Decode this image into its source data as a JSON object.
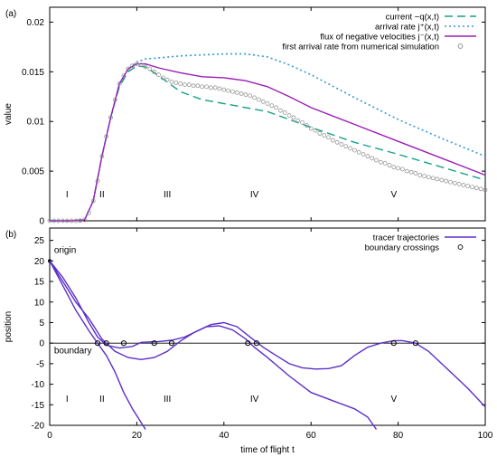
{
  "chart_data": [
    {
      "type": "line",
      "panel_label": "(a)",
      "xlabel": "",
      "ylabel": "value",
      "xlim": [
        0,
        100
      ],
      "ylim": [
        0,
        0.0215
      ],
      "xticks": [
        0,
        20,
        40,
        60,
        80,
        100
      ],
      "yticks": [
        0,
        0.005,
        0.01,
        0.015,
        0.02
      ],
      "ytick_labels": [
        "0",
        "0.005",
        "0.01",
        "0.015",
        "0.02"
      ],
      "legend_position": "top-right",
      "regions": [
        {
          "label": "I",
          "x": 4
        },
        {
          "label": "II",
          "x": 12
        },
        {
          "label": "III",
          "x": 27
        },
        {
          "label": "IV",
          "x": 47
        },
        {
          "label": "V",
          "x": 79
        }
      ],
      "series": [
        {
          "name": "current −q(x,t)",
          "style": "dashed",
          "color": "#16a085",
          "x": [
            0,
            5,
            8,
            10,
            12,
            14,
            16,
            18,
            20,
            22,
            25,
            30,
            35,
            40,
            50,
            60,
            70,
            80,
            90,
            100
          ],
          "y": [
            0,
            0,
            0.0001,
            0.002,
            0.0065,
            0.0104,
            0.0135,
            0.015,
            0.0156,
            0.0155,
            0.0146,
            0.013,
            0.0122,
            0.0118,
            0.011,
            0.0094,
            0.0079,
            0.0067,
            0.0054,
            0.0041
          ]
        },
        {
          "name": "arrival rate j⁺(x,t)",
          "style": "dotted",
          "color": "#3498db",
          "x": [
            0,
            5,
            8,
            10,
            12,
            14,
            16,
            18,
            20,
            22,
            25,
            30,
            35,
            40,
            45,
            50,
            55,
            60,
            70,
            80,
            90,
            100
          ],
          "y": [
            0,
            0,
            0.0001,
            0.002,
            0.0065,
            0.0104,
            0.0137,
            0.0153,
            0.016,
            0.0163,
            0.0164,
            0.0166,
            0.0167,
            0.0168,
            0.0168,
            0.0165,
            0.0157,
            0.0147,
            0.0124,
            0.0102,
            0.0083,
            0.0065
          ]
        },
        {
          "name": "flux of negative velocities j⁻(x,t)",
          "style": "solid",
          "color": "#9b1fb5",
          "x": [
            0,
            5,
            8,
            10,
            12,
            14,
            16,
            18,
            20,
            22,
            25,
            30,
            35,
            40,
            45,
            50,
            55,
            60,
            70,
            80,
            90,
            100
          ],
          "y": [
            0,
            0,
            0.0001,
            0.002,
            0.0065,
            0.0104,
            0.0138,
            0.0153,
            0.0158,
            0.0158,
            0.0154,
            0.0149,
            0.0145,
            0.0144,
            0.0141,
            0.0135,
            0.0125,
            0.0114,
            0.0097,
            0.008,
            0.0063,
            0.0046
          ]
        },
        {
          "name": "first arrival rate from numerical simulation",
          "style": "circles",
          "color": "#888888",
          "x": [
            0,
            1,
            2,
            3,
            4,
            5,
            6,
            7,
            8,
            9,
            10,
            11,
            12,
            13,
            14,
            15,
            16,
            17,
            18,
            19,
            20,
            21,
            22,
            23,
            24,
            25,
            26,
            27,
            28,
            29,
            30,
            31,
            32,
            33,
            34,
            35,
            36,
            37,
            38,
            39,
            40,
            41,
            42,
            43,
            44,
            45,
            46,
            47,
            48,
            49,
            50,
            51,
            52,
            53,
            54,
            55,
            56,
            57,
            58,
            59,
            60,
            61,
            62,
            63,
            64,
            65,
            66,
            67,
            68,
            69,
            70,
            71,
            72,
            73,
            74,
            75,
            76,
            77,
            78,
            79,
            80,
            81,
            82,
            83,
            84,
            85,
            86,
            87,
            88,
            89,
            90,
            91,
            92,
            93,
            94,
            95,
            96,
            97,
            98,
            99,
            100
          ],
          "y": [
            0,
            0,
            0,
            0,
            0,
            0,
            0,
            2e-05,
            0.0001,
            0.0008,
            0.002,
            0.004,
            0.0065,
            0.0085,
            0.0104,
            0.0122,
            0.0138,
            0.0146,
            0.0153,
            0.0156,
            0.0158,
            0.0157,
            0.0155,
            0.0153,
            0.015,
            0.0147,
            0.0144,
            0.0142,
            0.014,
            0.0139,
            0.0138,
            0.0137,
            0.0137,
            0.0136,
            0.0136,
            0.0135,
            0.0135,
            0.0134,
            0.0134,
            0.0133,
            0.0132,
            0.0131,
            0.013,
            0.0129,
            0.0128,
            0.0127,
            0.0126,
            0.0124,
            0.0122,
            0.012,
            0.0118,
            0.0116,
            0.0114,
            0.0111,
            0.0109,
            0.0106,
            0.0104,
            0.0101,
            0.0099,
            0.0096,
            0.0093,
            0.0091,
            0.0088,
            0.0086,
            0.0084,
            0.0081,
            0.0079,
            0.0077,
            0.0075,
            0.0073,
            0.0071,
            0.0069,
            0.0067,
            0.0065,
            0.0063,
            0.0061,
            0.0059,
            0.0058,
            0.0056,
            0.0054,
            0.0053,
            0.0052,
            0.005,
            0.0049,
            0.0048,
            0.0046,
            0.0045,
            0.0044,
            0.0043,
            0.0042,
            0.0041,
            0.004,
            0.0039,
            0.0038,
            0.0037,
            0.0036,
            0.0035,
            0.0034,
            0.0033,
            0.0032,
            0.0031
          ]
        }
      ]
    },
    {
      "type": "line",
      "panel_label": "(b)",
      "xlabel": "time of flight t",
      "ylabel": "position",
      "xlim": [
        0,
        100
      ],
      "ylim": [
        -20,
        28
      ],
      "xticks": [
        0,
        20,
        40,
        60,
        80,
        100
      ],
      "yticks": [
        -20,
        -15,
        -10,
        -5,
        0,
        5,
        10,
        15,
        20,
        25
      ],
      "legend_position": "top-right",
      "annotations": [
        {
          "text": "origin",
          "x": 1,
          "y": 22
        },
        {
          "text": "boundary",
          "x": 1,
          "y": -2.5
        }
      ],
      "boundary_y": 0,
      "regions": [
        {
          "label": "I",
          "x": 4
        },
        {
          "label": "II",
          "x": 12
        },
        {
          "label": "III",
          "x": 27
        },
        {
          "label": "IV",
          "x": 47
        },
        {
          "label": "V",
          "x": 79
        }
      ],
      "series": [
        {
          "name": "tracer trajectories",
          "style": "solid",
          "color": "#5b2fc9",
          "trajectories": [
            {
              "x": [
                0,
                3,
                6,
                9,
                11,
                13,
                15,
                17,
                19,
                22
              ],
              "y": [
                20,
                14,
                8,
                3,
                0,
                -3,
                -7,
                -12,
                -16,
                -21
              ]
            },
            {
              "x": [
                0,
                3,
                6,
                9,
                12,
                15,
                18,
                21,
                24,
                27,
                30,
                33,
                36,
                39,
                42,
                45,
                47,
                50,
                55,
                60,
                65,
                70,
                73,
                75
              ],
              "y": [
                20,
                15,
                10,
                6,
                1,
                -2,
                -3.5,
                -4,
                -3.5,
                -2,
                0.5,
                2.5,
                4,
                4.2,
                3.2,
                1,
                -1,
                -3.5,
                -8,
                -12,
                -14,
                -16,
                -18,
                -21
              ]
            },
            {
              "x": [
                0,
                3,
                6,
                9,
                11,
                13,
                16,
                19,
                21,
                23,
                25,
                28,
                31,
                34,
                37,
                40,
                43,
                46,
                49,
                52,
                55,
                58,
                61,
                64,
                67,
                70,
                73,
                76,
                79,
                81,
                84,
                87,
                90,
                93,
                96,
                100
              ],
              "y": [
                20,
                16,
                11,
                5,
                1.5,
                -0.5,
                -1.2,
                -0.8,
                0.2,
                0.3,
                0.4,
                0.7,
                1.5,
                3,
                4.5,
                5,
                4,
                1.5,
                -1,
                -3,
                -5,
                -6,
                -6.3,
                -6.2,
                -5.5,
                -3,
                -1,
                0,
                0.6,
                0.6,
                0,
                -2,
                -5,
                -8,
                -11,
                -15.5
              ]
            }
          ]
        },
        {
          "name": "boundary crossings",
          "style": "circles",
          "color": "#000000",
          "x": [
            11,
            13,
            17,
            24,
            28,
            45.5,
            47.5,
            79,
            84
          ],
          "y": [
            0,
            0,
            0,
            0,
            0,
            0,
            0,
            0,
            0
          ]
        }
      ]
    }
  ]
}
